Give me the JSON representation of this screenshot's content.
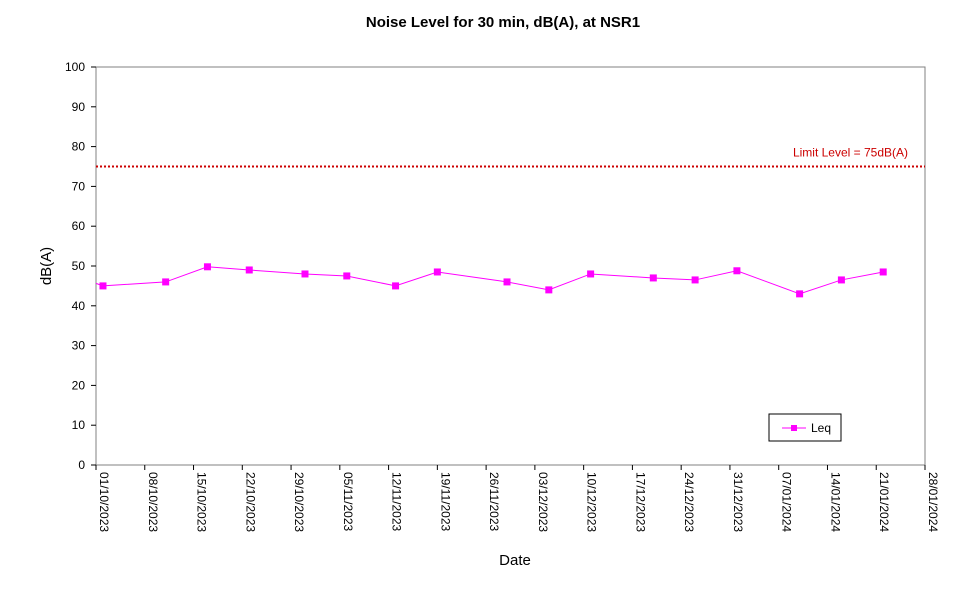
{
  "chart_data": {
    "type": "line",
    "title": "Noise Level for 30 min, dB(A), at NSR1",
    "xlabel": "Date",
    "ylabel": "dB(A)",
    "ylim": [
      0,
      100
    ],
    "yticks": [
      0,
      10,
      20,
      30,
      40,
      50,
      60,
      70,
      80,
      90,
      100
    ],
    "xlim": [
      "2023-10-01",
      "2024-01-28"
    ],
    "xtick_labels": [
      "01/10/2023",
      "08/10/2023",
      "15/10/2023",
      "22/10/2023",
      "29/10/2023",
      "05/11/2023",
      "12/11/2023",
      "19/11/2023",
      "26/11/2023",
      "03/12/2023",
      "10/12/2023",
      "17/12/2023",
      "24/12/2023",
      "31/12/2023",
      "07/01/2024",
      "14/01/2024",
      "21/01/2024",
      "28/01/2024"
    ],
    "grid": false,
    "legend_position": "bottom-right",
    "series": [
      {
        "name": "Leq",
        "color": "#ff00ff",
        "marker": "square",
        "x": [
          "2023-10-02",
          "2023-10-11",
          "2023-10-17",
          "2023-10-23",
          "2023-10-31",
          "2023-11-06",
          "2023-11-13",
          "2023-11-19",
          "2023-11-29",
          "2023-12-05",
          "2023-12-11",
          "2023-12-20",
          "2023-12-26",
          "2024-01-01",
          "2024-01-10",
          "2024-01-16",
          "2024-01-22"
        ],
        "values": [
          45,
          46,
          49.8,
          49,
          48,
          47.5,
          45,
          48.5,
          46,
          44,
          48,
          47,
          46.5,
          48.8,
          43,
          46.5,
          48.5
        ]
      }
    ],
    "reference_lines": [
      {
        "label": "Limit Level  = 75dB(A)",
        "value": 75,
        "color": "#cc0000",
        "style": "dotted"
      }
    ]
  }
}
